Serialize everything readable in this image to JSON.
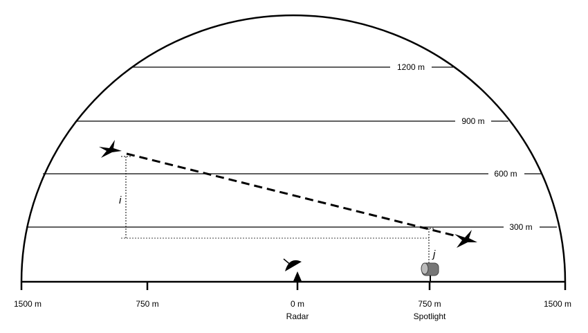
{
  "altitudes": [
    "1200 m",
    "900 m",
    "600 m",
    "300 m"
  ],
  "ground": {
    "ticks": [
      "1500 m",
      "750 m",
      "0 m",
      "750 m",
      "1500 m"
    ],
    "radar": "Radar",
    "spotlight": "Spotlight"
  },
  "variables": {
    "i": "i",
    "j": "j"
  }
}
